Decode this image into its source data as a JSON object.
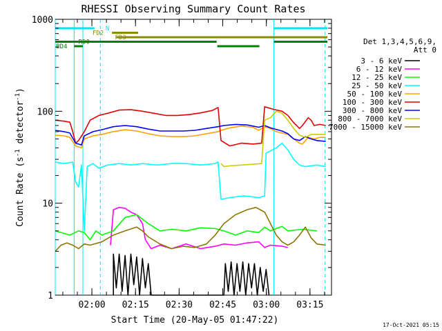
{
  "chart_data": {
    "type": "line",
    "title": "RHESSI Observing Summary Count Rates",
    "xlabel": "Start Time (20-May-05 01:47:22)",
    "ylabel_main": "Count Rate (s",
    "ylabel_sup1": "-1",
    "ylabel_mid": " detector",
    "ylabel_sup2": "-1",
    "ylabel_end": ")",
    "x_start_min": 0,
    "x_end_min": 95,
    "yscale": "log",
    "ylim": [
      1,
      1000
    ],
    "y_ticks": [
      {
        "value": 1,
        "label": "1"
      },
      {
        "value": 10,
        "label": "10"
      },
      {
        "value": 100,
        "label": "100"
      },
      {
        "value": 1000,
        "label": "1000"
      }
    ],
    "x_ticks": [
      {
        "min": 12.6,
        "label": "02:00"
      },
      {
        "min": 27.6,
        "label": "02:15"
      },
      {
        "min": 42.6,
        "label": "02:30"
      },
      {
        "min": 57.6,
        "label": "02:45"
      },
      {
        "min": 72.6,
        "label": "03:00"
      },
      {
        "min": 87.6,
        "label": "03:15"
      }
    ],
    "legend_header": [
      "Det 1,3,4,5,6,9,",
      "Att 0"
    ],
    "series": [
      {
        "name": "3 - 6 keV",
        "color": "#000000",
        "points": [
          [
            20,
            1
          ],
          [
            20,
            2.8
          ],
          [
            21,
            1.2
          ],
          [
            22,
            2.8
          ],
          [
            23,
            1.1
          ],
          [
            24,
            2.7
          ],
          [
            25,
            1
          ],
          [
            26,
            2.8
          ],
          [
            27,
            1.3
          ],
          [
            28,
            2.6
          ],
          [
            29,
            1
          ],
          [
            30,
            2.5
          ],
          [
            31,
            1.2
          ],
          [
            32,
            2.2
          ],
          [
            33,
            1
          ],
          [
            58,
            1
          ],
          [
            58.5,
            2.2
          ],
          [
            59.5,
            1.1
          ],
          [
            60.5,
            2.3
          ],
          [
            61.5,
            1
          ],
          [
            62.5,
            2.2
          ],
          [
            63.5,
            1.1
          ],
          [
            64.5,
            2.3
          ],
          [
            65.5,
            1
          ],
          [
            66.5,
            2.2
          ],
          [
            67.5,
            1.2
          ],
          [
            68.5,
            2.2
          ],
          [
            69.5,
            1
          ],
          [
            70.5,
            2
          ],
          [
            71.5,
            1.1
          ],
          [
            72.5,
            1.9
          ],
          [
            73.5,
            1
          ]
        ]
      },
      {
        "name": "6 - 12 keV",
        "color": "#ff00ff",
        "points": [
          [
            19,
            3.5
          ],
          [
            20,
            8.5
          ],
          [
            22,
            9
          ],
          [
            24,
            8.8
          ],
          [
            26,
            8
          ],
          [
            28,
            7.5
          ],
          [
            30,
            6
          ],
          [
            31,
            4
          ],
          [
            33,
            3.2
          ],
          [
            36,
            3.5
          ],
          [
            40,
            3.2
          ],
          [
            45,
            3.6
          ],
          [
            50,
            3.2
          ],
          [
            55,
            3.4
          ],
          [
            58,
            3.6
          ],
          [
            62,
            3.5
          ],
          [
            66,
            3.7
          ],
          [
            70,
            3.8
          ],
          [
            72,
            3.3
          ],
          [
            74,
            3.5
          ],
          [
            78,
            3.4
          ],
          [
            80,
            3.3
          ]
        ]
      },
      {
        "name": "12 - 25 keV",
        "color": "#00ff00",
        "points": [
          [
            0,
            5
          ],
          [
            5,
            4.5
          ],
          [
            8,
            5
          ],
          [
            10,
            4.8
          ],
          [
            12,
            4
          ],
          [
            14,
            5
          ],
          [
            16,
            4.5
          ],
          [
            20,
            5
          ],
          [
            24,
            7
          ],
          [
            28,
            7.5
          ],
          [
            32,
            6
          ],
          [
            36,
            5
          ],
          [
            40,
            5.2
          ],
          [
            45,
            5
          ],
          [
            50,
            5.4
          ],
          [
            55,
            5.3
          ],
          [
            58,
            5
          ],
          [
            62,
            4.5
          ],
          [
            66,
            5
          ],
          [
            70,
            4.8
          ],
          [
            72,
            5.5
          ],
          [
            74,
            5
          ],
          [
            78,
            5.6
          ],
          [
            80,
            5
          ],
          [
            85,
            5.2
          ],
          [
            90,
            5
          ]
        ]
      },
      {
        "name": "25 - 50 keV",
        "color": "#00ffff",
        "points": [
          [
            0,
            28
          ],
          [
            3,
            27
          ],
          [
            6,
            28
          ],
          [
            7,
            17
          ],
          [
            8,
            15
          ],
          [
            9,
            26
          ],
          [
            10,
            5
          ],
          [
            11,
            25
          ],
          [
            13,
            27
          ],
          [
            15,
            24
          ],
          [
            18,
            26
          ],
          [
            22,
            27
          ],
          [
            26,
            26
          ],
          [
            30,
            27
          ],
          [
            35,
            26
          ],
          [
            40,
            27
          ],
          [
            45,
            27
          ],
          [
            50,
            26
          ],
          [
            55,
            27
          ],
          [
            56,
            28
          ],
          [
            57,
            11
          ],
          [
            60,
            11.5
          ],
          [
            65,
            12
          ],
          [
            70,
            11.5
          ],
          [
            72,
            12
          ],
          [
            72.5,
            35
          ],
          [
            76,
            40
          ],
          [
            78,
            45
          ],
          [
            80,
            38
          ],
          [
            82,
            30
          ],
          [
            84,
            26
          ],
          [
            86,
            25
          ],
          [
            90,
            26
          ],
          [
            93,
            25
          ]
        ]
      },
      {
        "name": "50 - 100 keV",
        "color": "#ffa000",
        "points": [
          [
            0,
            55
          ],
          [
            3,
            54
          ],
          [
            5,
            52
          ],
          [
            7,
            42
          ],
          [
            9,
            40
          ],
          [
            10,
            50
          ],
          [
            13,
            54
          ],
          [
            16,
            56
          ],
          [
            20,
            60
          ],
          [
            24,
            63
          ],
          [
            28,
            61
          ],
          [
            32,
            57
          ],
          [
            36,
            54
          ],
          [
            40,
            53
          ],
          [
            44,
            53
          ],
          [
            48,
            54
          ],
          [
            52,
            57
          ],
          [
            56,
            60
          ],
          [
            57,
            62
          ],
          [
            60,
            66
          ],
          [
            64,
            69
          ],
          [
            68,
            67
          ],
          [
            70,
            62
          ],
          [
            72,
            68
          ],
          [
            74,
            65
          ],
          [
            76,
            60
          ],
          [
            78,
            58
          ],
          [
            80,
            56
          ],
          [
            82,
            50
          ],
          [
            84,
            45
          ],
          [
            85,
            44
          ],
          [
            87,
            52
          ],
          [
            89,
            50
          ],
          [
            91,
            52
          ],
          [
            93,
            52
          ]
        ]
      },
      {
        "name": "100 - 300 keV",
        "color": "#dd0000",
        "points": [
          [
            0,
            80
          ],
          [
            3,
            78
          ],
          [
            5,
            76
          ],
          [
            6,
            60
          ],
          [
            7,
            45
          ],
          [
            8,
            48
          ],
          [
            10,
            60
          ],
          [
            12,
            80
          ],
          [
            15,
            90
          ],
          [
            18,
            95
          ],
          [
            22,
            103
          ],
          [
            26,
            104
          ],
          [
            30,
            100
          ],
          [
            34,
            95
          ],
          [
            38,
            90
          ],
          [
            42,
            90
          ],
          [
            46,
            92
          ],
          [
            50,
            96
          ],
          [
            54,
            102
          ],
          [
            56,
            110
          ],
          [
            57,
            48
          ],
          [
            60,
            42
          ],
          [
            64,
            45
          ],
          [
            68,
            44
          ],
          [
            71,
            45
          ],
          [
            72,
            112
          ],
          [
            75,
            105
          ],
          [
            78,
            100
          ],
          [
            80,
            90
          ],
          [
            82,
            75
          ],
          [
            83,
            70
          ],
          [
            84,
            65
          ],
          [
            85,
            70
          ],
          [
            87,
            85
          ],
          [
            88,
            80
          ],
          [
            89,
            70
          ],
          [
            91,
            72
          ],
          [
            93,
            70
          ]
        ]
      },
      {
        "name": "300 - 800 keV",
        "color": "#0000ff",
        "points": [
          [
            0,
            62
          ],
          [
            3,
            60
          ],
          [
            5,
            58
          ],
          [
            7,
            45
          ],
          [
            9,
            43
          ],
          [
            10,
            54
          ],
          [
            13,
            60
          ],
          [
            16,
            63
          ],
          [
            20,
            68
          ],
          [
            24,
            70
          ],
          [
            28,
            68
          ],
          [
            32,
            64
          ],
          [
            36,
            61
          ],
          [
            40,
            61
          ],
          [
            44,
            61
          ],
          [
            48,
            62
          ],
          [
            52,
            65
          ],
          [
            56,
            68
          ],
          [
            58,
            70
          ],
          [
            62,
            72
          ],
          [
            66,
            71
          ],
          [
            70,
            67
          ],
          [
            72,
            70
          ],
          [
            74,
            66
          ],
          [
            78,
            61
          ],
          [
            80,
            57
          ],
          [
            82,
            50
          ],
          [
            84,
            48
          ],
          [
            86,
            53
          ],
          [
            88,
            50
          ],
          [
            90,
            48
          ],
          [
            93,
            47
          ]
        ]
      },
      {
        "name": "800 - 7000 keV",
        "color": "#cccc00",
        "points": [
          [
            57,
            27
          ],
          [
            58,
            25
          ],
          [
            60,
            25.5
          ],
          [
            64,
            26
          ],
          [
            68,
            26.5
          ],
          [
            71,
            27
          ],
          [
            72,
            80
          ],
          [
            74,
            85
          ],
          [
            76,
            100
          ],
          [
            78,
            95
          ],
          [
            80,
            80
          ],
          [
            82,
            65
          ],
          [
            84,
            55
          ],
          [
            86,
            52
          ],
          [
            88,
            56
          ],
          [
            90,
            56
          ],
          [
            93,
            56
          ]
        ]
      },
      {
        "name": "7000 - 15000 keV",
        "color": "#8b7500",
        "points": [
          [
            0,
            3
          ],
          [
            2,
            3.5
          ],
          [
            4,
            3.7
          ],
          [
            6,
            3.5
          ],
          [
            8,
            3.2
          ],
          [
            10,
            3.6
          ],
          [
            12,
            3.5
          ],
          [
            16,
            3.8
          ],
          [
            20,
            4.5
          ],
          [
            24,
            5
          ],
          [
            28,
            5.5
          ],
          [
            30,
            5
          ],
          [
            32,
            4.3
          ],
          [
            36,
            3.6
          ],
          [
            40,
            3.2
          ],
          [
            44,
            3.4
          ],
          [
            48,
            3.3
          ],
          [
            52,
            3.6
          ],
          [
            55,
            4.5
          ],
          [
            58,
            6
          ],
          [
            62,
            7.5
          ],
          [
            66,
            8.5
          ],
          [
            69,
            9
          ],
          [
            72,
            8
          ],
          [
            74,
            6
          ],
          [
            76,
            4.5
          ],
          [
            78,
            3.8
          ],
          [
            80,
            3.5
          ],
          [
            82,
            3.8
          ],
          [
            84,
            4.5
          ],
          [
            86,
            5.5
          ],
          [
            88,
            4.2
          ],
          [
            90,
            3.6
          ],
          [
            93,
            3.5
          ]
        ]
      }
    ],
    "bars": [
      {
        "label": "N",
        "color": "#00e5ee",
        "segments": [
          [
            0,
            13.5
          ],
          [
            75.2,
            93.6
          ]
        ],
        "row": 0
      },
      {
        "label": "FD2",
        "color": "#8b8b00",
        "segments": [
          [
            19.5,
            28.5
          ]
        ],
        "row": 1
      },
      {
        "label": "FD3",
        "color": "#8b8b00",
        "segments": [
          [
            21,
            93.6
          ]
        ],
        "row": 2
      },
      {
        "label": "RD0",
        "color": "#008000",
        "segments": [
          [
            0,
            55.5
          ],
          [
            75.2,
            93.6
          ]
        ],
        "row": 3
      },
      {
        "label": "BD4",
        "color": "#008000",
        "segments": [
          [
            6.5,
            9.5
          ],
          [
            55.7,
            70.2
          ]
        ],
        "row": 4
      }
    ],
    "bar_labels": [
      {
        "text": "N",
        "color": "#00e5ee",
        "xmin": 17.3,
        "row": 0
      },
      {
        "text": "FD2",
        "color": "#8b8b00",
        "xmin": 12.8,
        "row": 1
      },
      {
        "text": "FD3",
        "color": "#8b8b00",
        "xmin": 20.5,
        "row": 2
      },
      {
        "text": "RD0",
        "color": "#008000",
        "xmin": 8,
        "row": 3
      },
      {
        "text": "BD4",
        "color": "#008000",
        "xmin": 0.3,
        "row": 4
      }
    ],
    "vlines": [
      {
        "min": 0,
        "color": "#00e5ee",
        "style": "solid"
      },
      {
        "min": 6.5,
        "color": "#00e5ee",
        "style": "solid"
      },
      {
        "min": 9.5,
        "color": "#00e5ee",
        "style": "solid"
      },
      {
        "min": 15.5,
        "color": "#00e5ee",
        "style": "dash"
      },
      {
        "min": 75.2,
        "color": "#00e5ee",
        "style": "solid"
      },
      {
        "min": 92.8,
        "color": "#00e5ee",
        "style": "dash"
      }
    ],
    "grid": false
  },
  "footer": {
    "timestamp": "17-Oct-2021 05:15"
  }
}
